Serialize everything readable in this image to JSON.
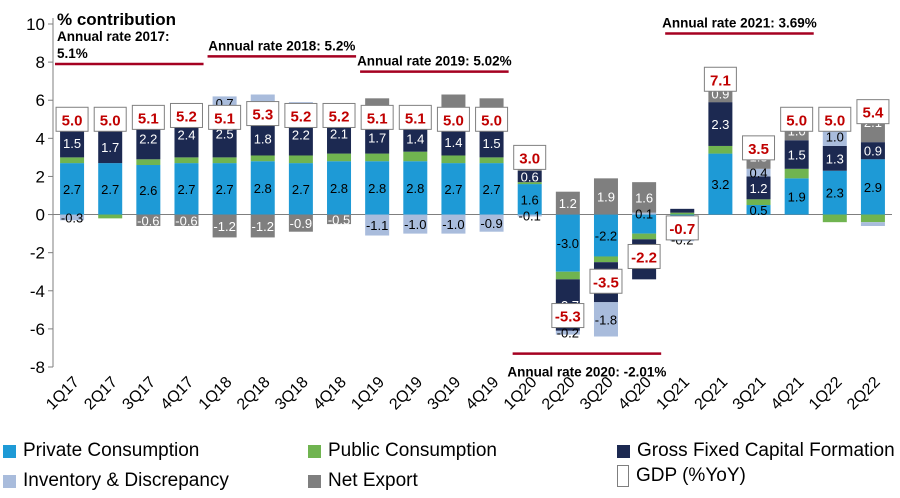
{
  "chart_data": {
    "type": "bar",
    "stacked": true,
    "ylabel": "% contribution",
    "ylim": [
      -8,
      10
    ],
    "yticks": [
      -8,
      -6,
      -4,
      -2,
      0,
      2,
      4,
      6,
      8,
      10
    ],
    "categories": [
      "1Q17",
      "2Q17",
      "3Q17",
      "4Q17",
      "1Q18",
      "2Q18",
      "3Q18",
      "4Q18",
      "1Q19",
      "2Q19",
      "3Q19",
      "4Q19",
      "1Q20",
      "2Q20",
      "3Q20",
      "4Q20",
      "1Q21",
      "2Q21",
      "3Q21",
      "4Q21",
      "1Q22",
      "2Q22"
    ],
    "series": [
      {
        "name": "Private Consumption",
        "color": "#1e9ad6",
        "values": [
          2.7,
          2.7,
          2.6,
          2.7,
          2.7,
          2.8,
          2.7,
          2.8,
          2.8,
          2.8,
          2.7,
          2.7,
          1.6,
          -3.0,
          -2.2,
          -1.0,
          -1.2,
          3.2,
          0.5,
          1.9,
          2.3,
          2.9
        ]
      },
      {
        "name": "Public Consumption",
        "color": "#70b450",
        "values": [
          0.3,
          -0.2,
          0.3,
          0.3,
          0.3,
          0.3,
          0.4,
          0.4,
          0.4,
          0.5,
          0.4,
          0.3,
          0.1,
          -0.4,
          -0.3,
          -0.3,
          0.1,
          0.4,
          0.3,
          0.5,
          -0.4,
          -0.4
        ]
      },
      {
        "name": "Gross Fixed Capital Formation",
        "color": "#1c2951",
        "values": [
          1.5,
          1.7,
          2.2,
          2.4,
          2.5,
          1.8,
          2.2,
          2.1,
          1.7,
          1.4,
          1.4,
          1.5,
          0.6,
          -2.7,
          -2.1,
          -2.1,
          0.2,
          2.3,
          1.2,
          1.5,
          1.3,
          0.9
        ]
      },
      {
        "name": "Inventory & Discrepancy",
        "color": "#a9bcdc",
        "values": [
          -0.3,
          0.5,
          0.4,
          0.2,
          0.7,
          1.4,
          0.6,
          0.2,
          -1.1,
          -1.0,
          -1.0,
          -0.9,
          -0.1,
          -0.2,
          -1.8,
          0.1,
          -0.2,
          0.0,
          0.4,
          0.0,
          1.0,
          -0.2
        ]
      },
      {
        "name": "Net Export",
        "color": "#7f7f7f",
        "values": [
          0.8,
          0.0,
          -0.6,
          -0.6,
          -1.2,
          -1.2,
          -0.9,
          -0.5,
          1.2,
          1.0,
          1.8,
          1.6,
          0.8,
          1.2,
          1.9,
          1.6,
          0.0,
          0.9,
          1.3,
          1.0,
          0.8,
          2.1
        ]
      }
    ],
    "segment_labels": [
      [
        "2.7",
        null,
        "1.5",
        "-0.3",
        "0.8"
      ],
      [
        "2.7",
        null,
        "1.7",
        "0.5",
        null
      ],
      [
        "2.6",
        null,
        "2.2",
        "0.4",
        "-0.6"
      ],
      [
        "2.7",
        null,
        "2.4",
        "0.2",
        "-0.6"
      ],
      [
        "2.7",
        null,
        "2.5",
        "0.7",
        "-1.2"
      ],
      [
        "2.8",
        null,
        "1.8",
        "1.4",
        "-1.2"
      ],
      [
        "2.7",
        null,
        "2.2",
        "0.6",
        "-0.9"
      ],
      [
        "2.8",
        null,
        "2.1",
        "0.2",
        "-0.5"
      ],
      [
        "2.8",
        null,
        "1.7",
        "-1.1",
        "1.2"
      ],
      [
        "2.8",
        null,
        "1.4",
        "-1.0",
        "1.0"
      ],
      [
        "2.7",
        null,
        "1.4",
        "-1.0",
        "1.8"
      ],
      [
        "2.7",
        null,
        "1.5",
        "-0.9",
        "1.6"
      ],
      [
        "1.6",
        null,
        "0.6",
        "-0.1",
        "0.8"
      ],
      [
        "-3.0",
        null,
        "-2.7",
        "-0.2",
        "1.2"
      ],
      [
        "-2.2",
        null,
        "-2.1",
        "-1.8",
        "1.9"
      ],
      [
        null,
        null,
        "-2.1",
        "0.1",
        "1.6"
      ],
      [
        "-1.2",
        null,
        null,
        "-0.2",
        null
      ],
      [
        "3.2",
        null,
        "2.3",
        "0.0",
        "0.9"
      ],
      [
        "0.5",
        null,
        "1.2",
        "0.4",
        "1.3"
      ],
      [
        "1.9",
        null,
        "1.5",
        null,
        "1.0"
      ],
      [
        "2.3",
        null,
        "1.3",
        "1.0",
        "0.8"
      ],
      [
        "2.9",
        null,
        "0.9",
        null,
        "2.1"
      ]
    ],
    "gdp": {
      "name": "GDP (%YoY)",
      "values": [
        5.0,
        5.0,
        5.1,
        5.2,
        5.1,
        5.3,
        5.2,
        5.2,
        5.1,
        5.1,
        5.0,
        5.0,
        3.0,
        -5.3,
        -3.5,
        -2.2,
        -0.7,
        7.1,
        3.5,
        5.0,
        5.0,
        5.4
      ],
      "labels": [
        "5.0",
        "5.0",
        "5.1",
        "5.2",
        "5.1",
        "5.3",
        "5.2",
        "5.2",
        "5.1",
        "5.1",
        "5.0",
        "5.0",
        "3.0",
        "-5.3",
        "-3.5",
        "-2.2",
        "-0.7",
        "7.1",
        "3.5",
        "5.0",
        "5.0",
        "5.4"
      ],
      "label_color": "#c00000"
    },
    "annotations": [
      {
        "text": "Annual rate 2017:\n5.1%",
        "from": "1Q17",
        "to": "4Q17",
        "value": 7.9
      },
      {
        "text": "Annual rate 2018:  5.2%",
        "from": "1Q18",
        "to": "4Q18",
        "value": 8.3
      },
      {
        "text": "Annual rate 2019:  5.02%",
        "from": "1Q19",
        "to": "4Q19",
        "value": 7.5
      },
      {
        "text": "Annual rate 2020:  -2.01%",
        "from": "1Q20",
        "to": "4Q20",
        "value": -7.3
      },
      {
        "text": "Annual rate 2021:  3.69%",
        "from": "1Q21",
        "to": "4Q21",
        "value": 9.5
      }
    ],
    "annotation_line_color": "#a50021",
    "legend_placement": "bottom",
    "grid": false
  },
  "legend": [
    {
      "name": "Private Consumption",
      "color": "#1e9ad6"
    },
    {
      "name": "Public Consumption",
      "color": "#70b450"
    },
    {
      "name": "Gross Fixed Capital Formation",
      "color": "#1c2951"
    },
    {
      "name": "Inventory & Discrepancy",
      "color": "#a9bcdc"
    },
    {
      "name": "Net Export",
      "color": "#7f7f7f"
    },
    {
      "name": "GDP (%YoY)",
      "color": "#ffffff"
    }
  ]
}
